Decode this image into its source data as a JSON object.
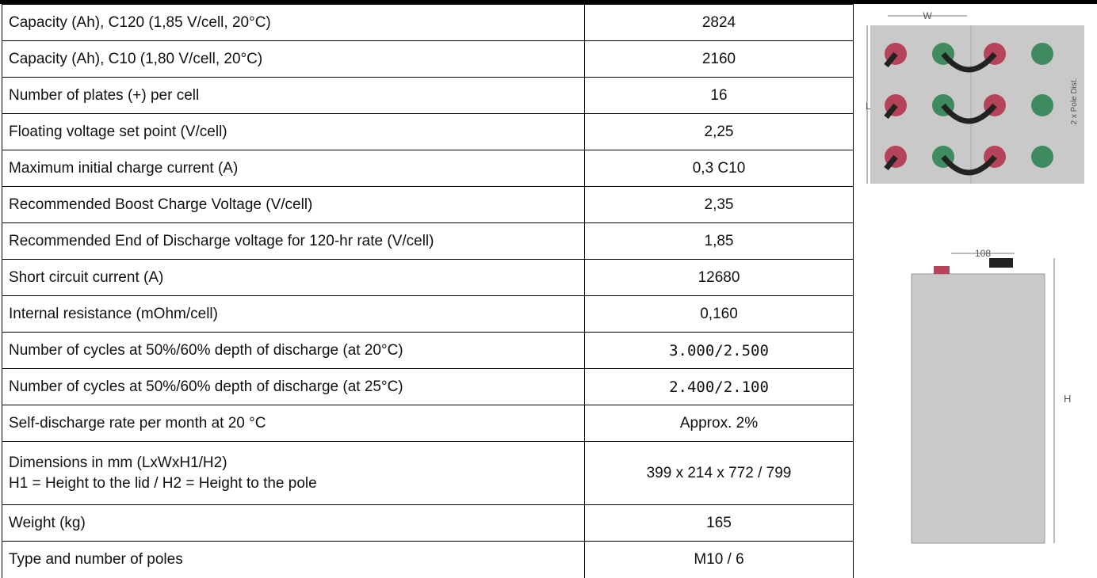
{
  "table": {
    "rows": [
      [
        "Capacity (Ah), C120 (1,85 V/cell, 20°C)",
        "2824"
      ],
      [
        "Capacity (Ah), C10 (1,80 V/cell, 20°C)",
        "2160"
      ],
      [
        "Number of plates (+) per cell",
        "16"
      ],
      [
        "Floating voltage set point (V/cell)",
        "2,25"
      ],
      [
        "Maximum initial charge current (A)",
        "0,3 C10"
      ],
      [
        "Recommended Boost Charge Voltage (V/cell)",
        "2,35"
      ],
      [
        "Recommended End of Discharge voltage for 120-hr rate (V/cell)",
        "1,85"
      ],
      [
        "Short circuit current (A)",
        "12680"
      ],
      [
        "Internal resistance (mOhm/cell)",
        "0,160"
      ],
      [
        "Number of cycles at 50%/60% depth of discharge (at 20°C)",
        "3.000/2.500"
      ],
      [
        "Number of cycles at 50%/60% depth of discharge (at 25°C)",
        "2.400/2.100"
      ],
      [
        "Self-discharge rate per month at 20 °C",
        "Approx. 2%"
      ],
      [
        "Dimensions in mm (LxWxH1/H2)\nH1 = Height to the lid / H2 = Height to the pole",
        "399 x 214 x 772 / 799"
      ],
      [
        "Weight (kg)",
        "165"
      ],
      [
        "Type and number of poles",
        "M10 / 6"
      ]
    ]
  },
  "images": {
    "top_view": {
      "width_label": "W",
      "length_label": "L",
      "pole_label": "2 x Pole Dist."
    },
    "side_view": {
      "width_label": "108",
      "height_label": "H"
    }
  }
}
